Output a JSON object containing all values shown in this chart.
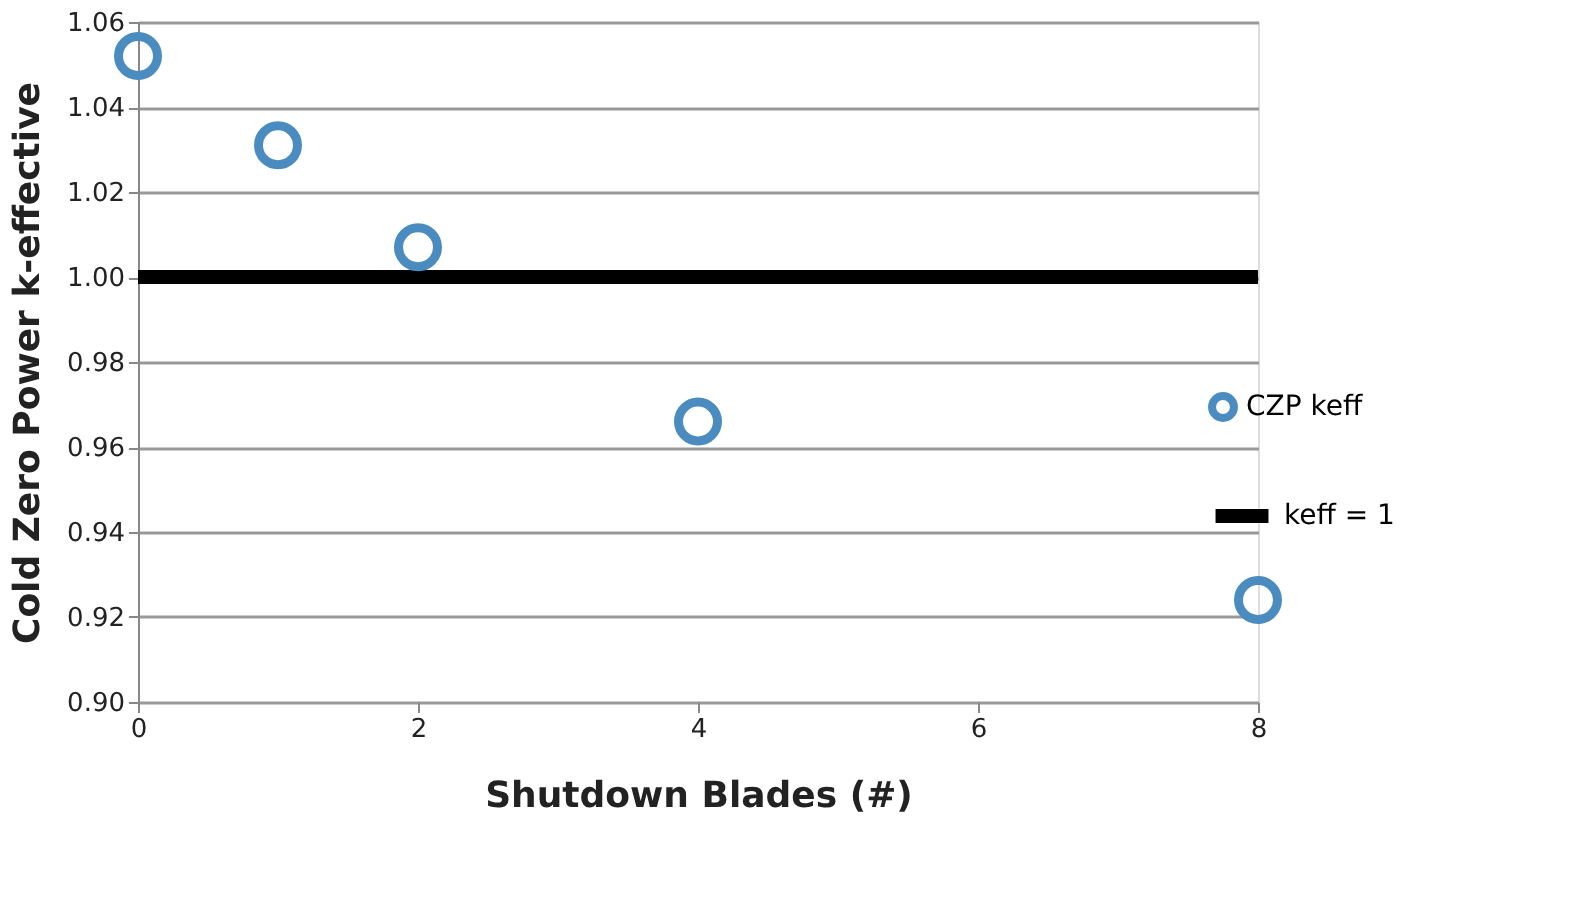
{
  "chart_data": {
    "type": "scatter",
    "xlabel": "Shutdown Blades (#)",
    "ylabel": "Cold Zero Power k-effective",
    "x": [
      0,
      1,
      2,
      4,
      8
    ],
    "series": [
      {
        "name": "CZP keff",
        "type": "scatter",
        "color": "#4a8cc0",
        "marker": "circle",
        "values": [
          1.052,
          1.031,
          1.007,
          0.966,
          0.924
        ]
      },
      {
        "name": "keff = 1",
        "type": "line",
        "color": "#000000",
        "x": [
          0,
          8
        ],
        "values": [
          1.0,
          1.0
        ],
        "line_style": "solid"
      }
    ],
    "xlim": [
      0,
      8
    ],
    "xticks": [
      0,
      2,
      4,
      6,
      8
    ],
    "ylim": [
      0.9,
      1.06
    ],
    "yticks": [
      {
        "value": 0.9,
        "label": "0.90"
      },
      {
        "value": 0.92,
        "label": "0.92"
      },
      {
        "value": 0.94,
        "label": "0.94"
      },
      {
        "value": 0.96,
        "label": "0.96"
      },
      {
        "value": 0.98,
        "label": "0.98"
      },
      {
        "value": 1.0,
        "label": "1.00"
      },
      {
        "value": 1.02,
        "label": "1.02"
      },
      {
        "value": 1.04,
        "label": "1.04"
      },
      {
        "value": 1.06,
        "label": "1.06"
      }
    ],
    "grid": "y",
    "legend": "right"
  }
}
